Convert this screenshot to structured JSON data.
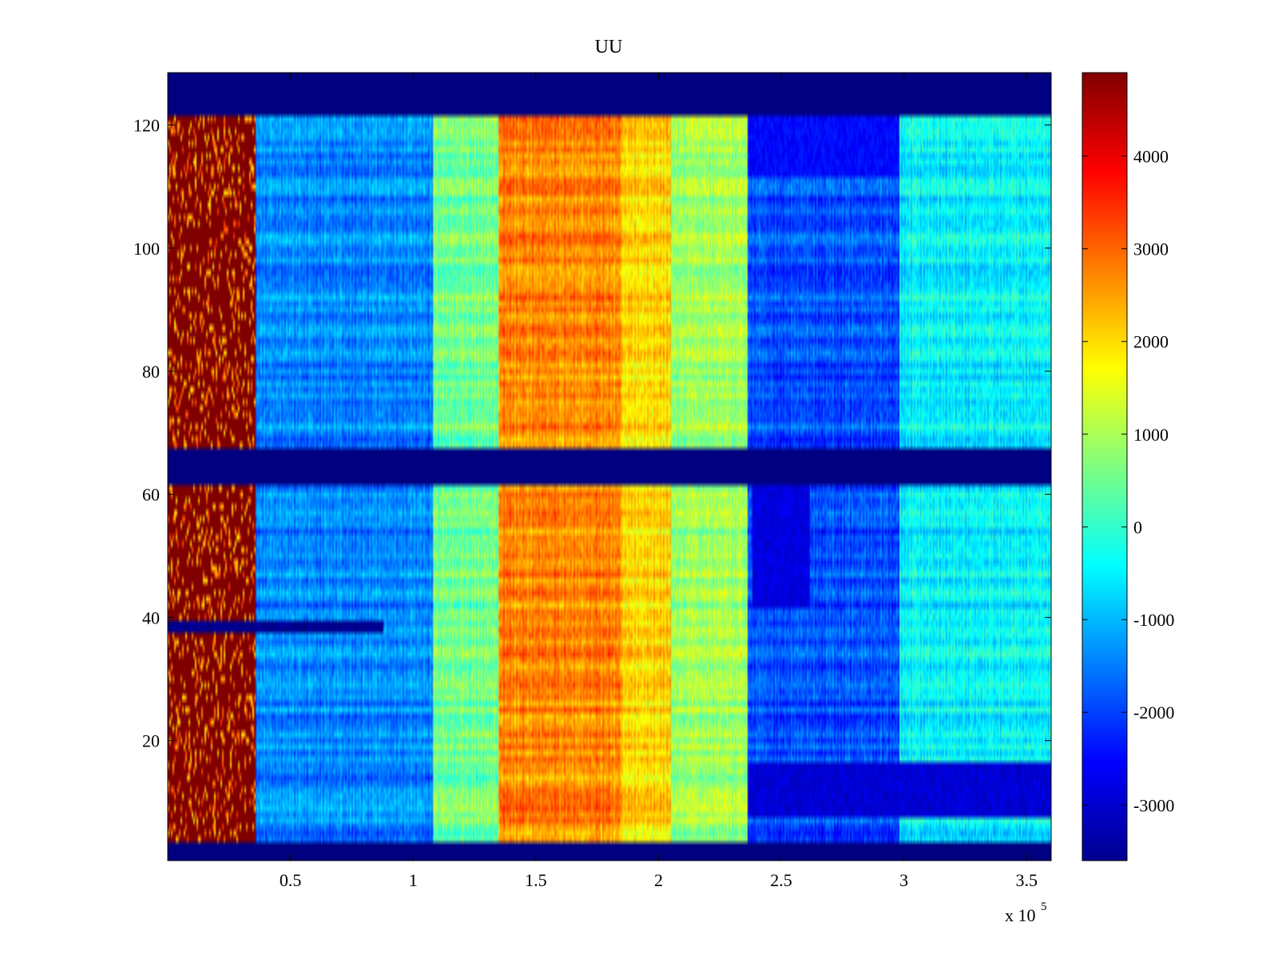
{
  "chart_data": {
    "type": "heatmap",
    "title": "UU",
    "xlabel": "",
    "ylabel": "",
    "x_range": [
      0,
      360000
    ],
    "y_range": [
      1,
      128
    ],
    "x_ticks": [
      50000,
      100000,
      150000,
      200000,
      250000,
      300000,
      350000
    ],
    "x_tick_labels": [
      "0.5",
      "1",
      "1.5",
      "2",
      "2.5",
      "3",
      "3.5"
    ],
    "x_exponent_label": "x 10",
    "x_exponent_power": "5",
    "y_ticks": [
      20,
      40,
      60,
      80,
      100,
      120
    ],
    "y_tick_labels": [
      "20",
      "40",
      "60",
      "80",
      "100",
      "120"
    ],
    "colorbar": {
      "colormap": "jet",
      "range": [
        -3600,
        4900
      ],
      "ticks": [
        -3000,
        -2000,
        -1000,
        0,
        1000,
        2000,
        3000,
        4000
      ],
      "tick_labels": [
        "-3000",
        "-2000",
        "-1000",
        "0",
        "1000",
        "2000",
        "3000",
        "4000"
      ]
    },
    "empty_row_bands": [
      [
        1,
        3
      ],
      [
        62,
        67
      ],
      [
        122,
        128
      ]
    ],
    "x_regions": [
      {
        "x_start": 0,
        "x_end": 36000,
        "level": 4900,
        "description": "saturated"
      },
      {
        "x_start": 36000,
        "x_end": 108000,
        "level": -1400
      },
      {
        "x_start": 108000,
        "x_end": 135000,
        "level": 500
      },
      {
        "x_start": 135000,
        "x_end": 185000,
        "level": 2700
      },
      {
        "x_start": 185000,
        "x_end": 205000,
        "level": 2000
      },
      {
        "x_start": 205000,
        "x_end": 236000,
        "level": 900
      },
      {
        "x_start": 236000,
        "x_end": 298000,
        "level": -1900
      },
      {
        "x_start": 298000,
        "x_end": 360000,
        "level": -500
      }
    ],
    "row_features": [
      {
        "y_start": 38,
        "y_end": 39,
        "x_start": 0,
        "x_end": 88000,
        "level": -3500
      },
      {
        "y_start": 8,
        "y_end": 16,
        "x_start": 236000,
        "x_end": 360000,
        "level": -2900
      },
      {
        "y_start": 42,
        "y_end": 61,
        "x_start": 238000,
        "x_end": 262000,
        "level": -2800
      },
      {
        "y_start": 112,
        "y_end": 121,
        "x_start": 236000,
        "x_end": 298000,
        "level": -2500
      }
    ]
  }
}
